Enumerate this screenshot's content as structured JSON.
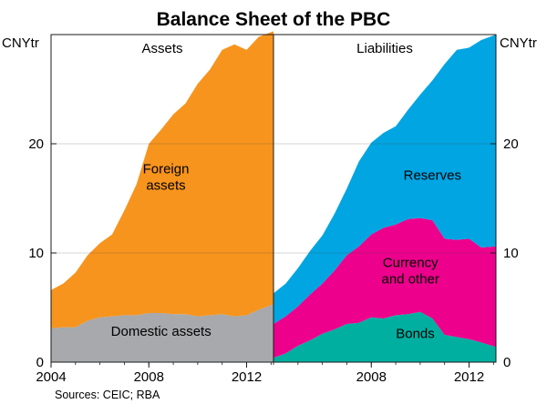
{
  "chart_data": {
    "type": "area",
    "title": "Balance Sheet of the PBC",
    "source": "Sources: CEIC; RBA",
    "yunit": "CNYtr",
    "ylim": [
      0,
      30
    ],
    "yticks": [
      0,
      10,
      20
    ],
    "xlim": [
      2004,
      2013.1
    ],
    "xticks_left": [
      2004,
      2008,
      2012
    ],
    "xticks_right": [
      2008,
      2012
    ],
    "stacked": true,
    "panels": [
      {
        "name": "Assets",
        "x": [
          2004.0,
          2004.5,
          2005.0,
          2005.5,
          2006.0,
          2006.5,
          2007.0,
          2007.5,
          2008.0,
          2008.5,
          2009.0,
          2009.5,
          2010.0,
          2010.5,
          2011.0,
          2011.5,
          2012.0,
          2012.5,
          2013.1
        ],
        "series": [
          {
            "name": "Domestic assets",
            "values": [
              3.1,
              3.2,
              3.2,
              3.8,
              4.1,
              4.2,
              4.3,
              4.3,
              4.5,
              4.5,
              4.4,
              4.4,
              4.2,
              4.3,
              4.4,
              4.2,
              4.3,
              4.8,
              5.3
            ]
          },
          {
            "name": "Foreign assets",
            "values": [
              3.5,
              4.0,
              5.0,
              6.0,
              6.8,
              7.5,
              9.6,
              12.0,
              15.5,
              16.8,
              18.3,
              19.3,
              21.3,
              22.5,
              24.2,
              24.9,
              24.3,
              25.0,
              25.0
            ]
          }
        ]
      },
      {
        "name": "Liabilities",
        "x": [
          2004.0,
          2004.5,
          2005.0,
          2005.5,
          2006.0,
          2006.5,
          2007.0,
          2007.5,
          2008.0,
          2008.5,
          2009.0,
          2009.5,
          2010.0,
          2010.5,
          2011.0,
          2011.5,
          2012.0,
          2012.5,
          2013.1
        ],
        "series": [
          {
            "name": "Bonds",
            "values": [
              0.4,
              0.8,
              1.5,
              2.0,
              2.6,
              3.0,
              3.5,
              3.6,
              4.1,
              4.0,
              4.3,
              4.4,
              4.6,
              4.0,
              2.5,
              2.3,
              2.1,
              1.8,
              1.4
            ]
          },
          {
            "name": "Currency and other",
            "values": [
              3.1,
              3.4,
              3.6,
              4.2,
              4.6,
              5.4,
              6.3,
              7.0,
              7.6,
              8.3,
              8.3,
              8.7,
              8.6,
              9.0,
              8.8,
              8.9,
              9.2,
              8.7,
              9.2
            ]
          },
          {
            "name": "Reserves",
            "values": [
              2.8,
              3.0,
              3.5,
              4.0,
              4.4,
              5.2,
              6.1,
              7.8,
              8.4,
              8.7,
              9.0,
              10.0,
              11.3,
              12.8,
              16.0,
              17.4,
              17.5,
              19.0,
              19.4
            ]
          }
        ]
      }
    ],
    "colors": {
      "Domestic assets": "#a7a9ac",
      "Foreign assets": "#f7941d",
      "Bonds": "#00afa0",
      "Currency and other": "#ec008c",
      "Reserves": "#00a5e2"
    },
    "labels": {
      "Domestic assets": [
        "Domestic assets"
      ],
      "Foreign assets": [
        "Foreign",
        "assets"
      ],
      "Bonds": [
        "Bonds"
      ],
      "Currency and other": [
        "Currency",
        "and other"
      ],
      "Reserves": [
        "Reserves"
      ]
    }
  }
}
